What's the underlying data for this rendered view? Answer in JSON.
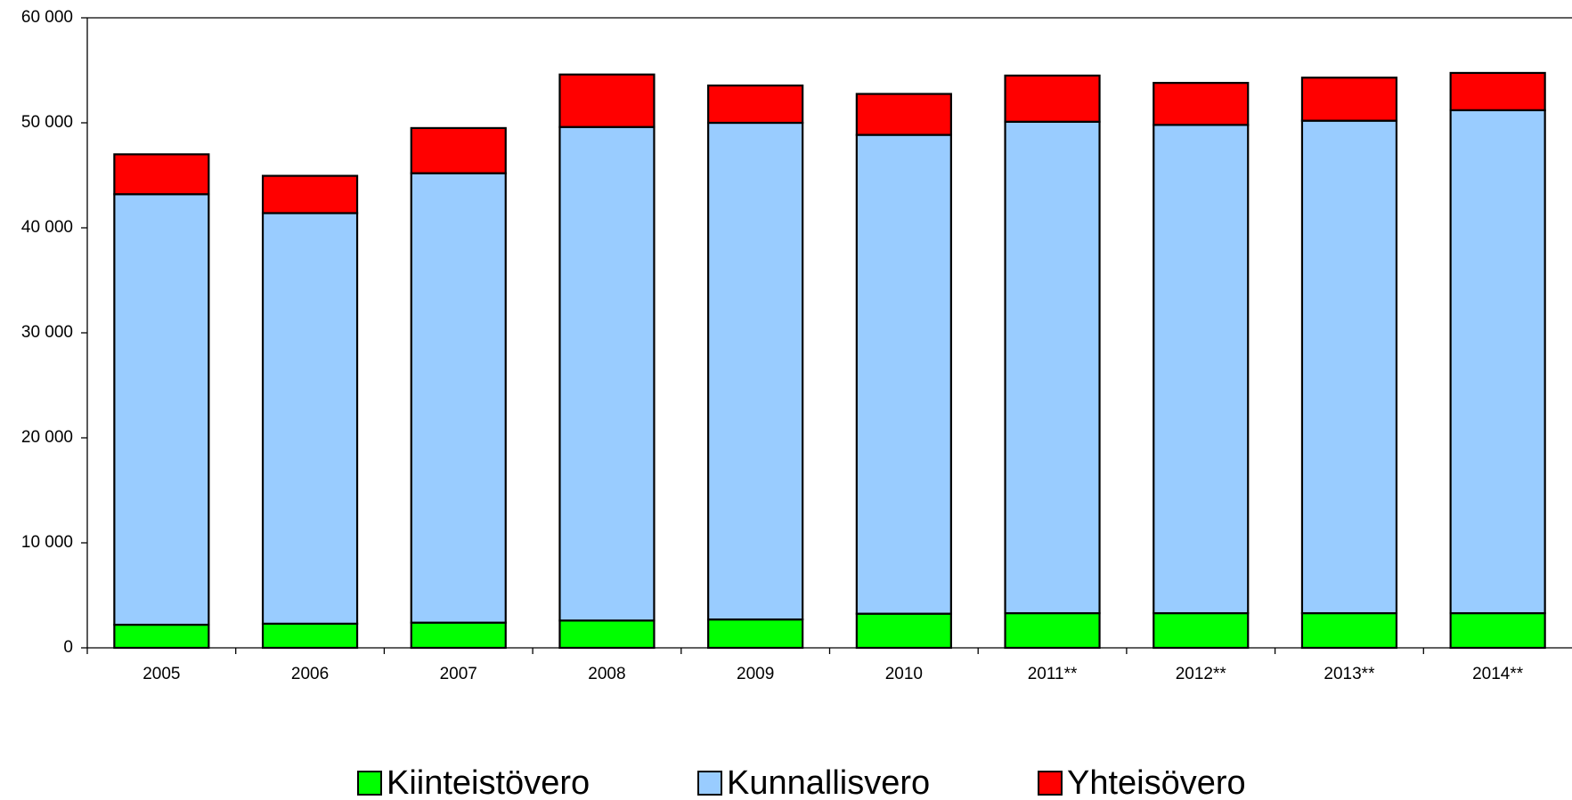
{
  "chart_data": {
    "type": "stacked_bar",
    "categories": [
      "2005",
      "2006",
      "2007",
      "2008",
      "2009",
      "2010",
      "2011**",
      "2012**",
      "2013**",
      "2014**"
    ],
    "series": [
      {
        "name": "Kiinteistövero",
        "color": "#00ff00",
        "values": [
          2200,
          2300,
          2400,
          2600,
          2700,
          3250,
          3300,
          3300,
          3300,
          3300
        ]
      },
      {
        "name": "Kunnallisvero",
        "color": "#99ccff",
        "values": [
          41000,
          39100,
          42800,
          47000,
          47300,
          45600,
          46800,
          46500,
          46900,
          47900
        ]
      },
      {
        "name": "Yhteisövero",
        "color": "#ff0000",
        "values": [
          3800,
          3550,
          4300,
          5000,
          3550,
          3900,
          4400,
          4000,
          4100,
          3550
        ]
      }
    ],
    "ylim": [
      0,
      60000
    ],
    "yticks": [
      0,
      {
        "value": 10000,
        "label": "10 000"
      },
      {
        "value": 20000,
        "label": "20 000"
      },
      {
        "value": 30000,
        "label": "30 000"
      },
      {
        "value": 40000,
        "label": "40 000"
      },
      {
        "value": 50000,
        "label": "50 000"
      },
      {
        "value": 60000,
        "label": "60 000"
      }
    ],
    "legend": "bottom"
  }
}
